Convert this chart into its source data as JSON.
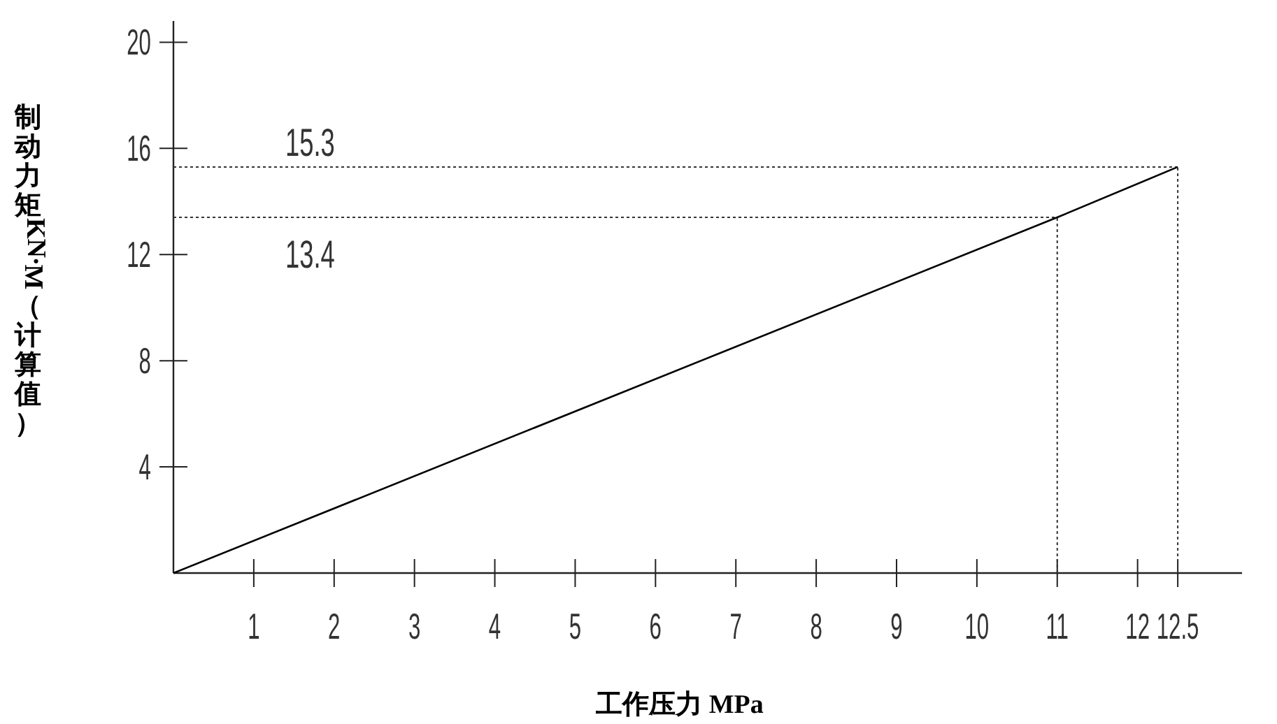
{
  "chart_data": {
    "type": "line",
    "xlabel": "工作压力 MPa",
    "ylabel": "制动力矩 KN.M（计算值）",
    "series": [
      {
        "color": "#000000",
        "x": [
          0,
          11,
          12.5
        ],
        "values": [
          0,
          13.4,
          15.3
        ]
      }
    ],
    "xlim": [
      0,
      13.3
    ],
    "xticks": [
      1,
      2,
      3,
      4,
      5,
      6,
      7,
      8,
      9,
      10,
      11,
      12,
      12.5
    ],
    "ylim": [
      0,
      20.8
    ],
    "yticks": [
      4,
      8,
      12,
      16,
      20
    ],
    "ref_lines": [
      {
        "axis": "y",
        "value": 15.3,
        "label": "15.3",
        "line_style": "dotted"
      },
      {
        "axis": "y",
        "value": 13.4,
        "label": "13.4",
        "line_style": "dotted"
      },
      {
        "axis": "x",
        "value": 12.5,
        "label": null,
        "line_style": "dotted"
      },
      {
        "axis": "x",
        "value": 11,
        "label": null,
        "line_style": "dotted"
      }
    ],
    "grid": false,
    "legend": false
  }
}
